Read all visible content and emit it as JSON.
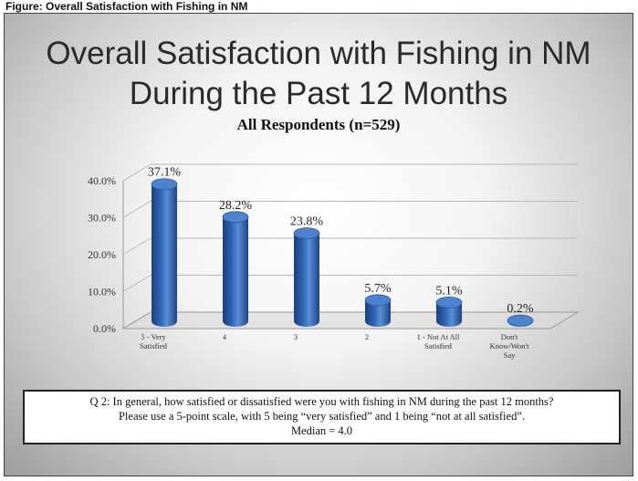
{
  "header": "Figure: Overall Satisfaction with Fishing in NM",
  "slide": {
    "title_line1": "Overall Satisfaction with Fishing in NM",
    "title_line2": "During the Past 12 Months",
    "subtitle": "All Respondents (n=529)"
  },
  "chart_data": {
    "type": "bar",
    "categories": [
      [
        "5 - Very",
        "Satisfied"
      ],
      [
        "4"
      ],
      [
        "3"
      ],
      [
        "2"
      ],
      [
        "1 - Not At All",
        "Satisfied"
      ],
      [
        "Don't",
        "Know/Won't",
        "Say"
      ]
    ],
    "values": [
      37.1,
      28.2,
      23.8,
      5.7,
      5.1,
      0.2
    ],
    "value_labels": [
      "37.1%",
      "28.2%",
      "23.8%",
      "5.7%",
      "5.1%",
      "0.2%"
    ],
    "y_ticks": [
      "0.0%",
      "10.0%",
      "20.0%",
      "30.0%",
      "40.0%"
    ],
    "ylim": [
      0,
      40
    ],
    "bar_color": "#2e64b4",
    "grid": true
  },
  "question": {
    "line1": "Q 2: In general, how satisfied or dissatisfied were you with fishing in NM during the past 12 months?",
    "line2": "Please use a 5-point scale, with 5 being “very satisfied” and 1 being “not at all satisfied”.",
    "line3": "Median = 4.0"
  }
}
